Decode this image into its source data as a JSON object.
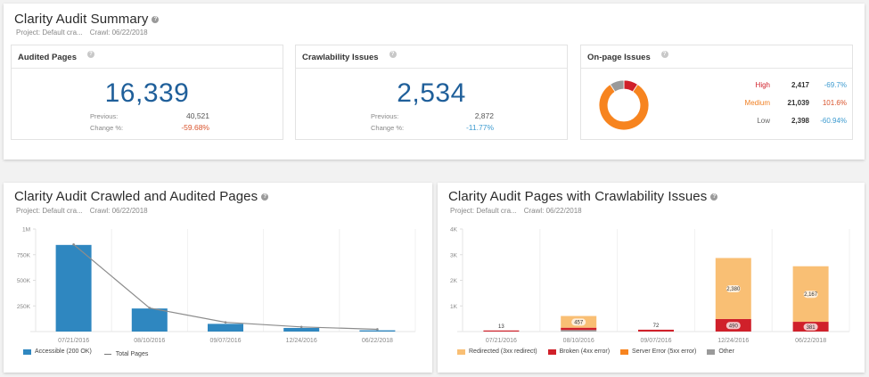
{
  "summary": {
    "title": "Clarity Audit Summary",
    "help_icon": "question-circle-icon",
    "project": "Project: Default cra...",
    "crawl": "Crawl: 06/22/2018",
    "audited_pages": {
      "title": "Audited Pages",
      "value": "16,339",
      "previous_label": "Previous:",
      "previous_value": "40,521",
      "change_label": "Change %:",
      "change_value": "-59.68%",
      "change_color": "#d9532c"
    },
    "crawlability_issues": {
      "title": "Crawlability Issues",
      "value": "2,534",
      "previous_label": "Previous:",
      "previous_value": "2,872",
      "change_label": "Change %:",
      "change_value": "-11.77%",
      "change_color": "#3d9bd0"
    },
    "onpage_issues": {
      "title": "On-page Issues",
      "rows": [
        {
          "label": "High",
          "value": "2,417",
          "change": "-69.7%",
          "label_color": "#d0202a",
          "change_color": "#3d9bd0",
          "count": 2417
        },
        {
          "label": "Medium",
          "value": "21,039",
          "change": "101.6%",
          "label_color": "#f07f22",
          "change_color": "#d9532c",
          "count": 21039
        },
        {
          "label": "Low",
          "value": "2,398",
          "change": "-60.94%",
          "label_color": "#666666",
          "change_color": "#3d9bd0",
          "count": 2398
        }
      ],
      "donut_colors": {
        "High": "#d0202a",
        "Medium": "#f7841f",
        "Low": "#9a9a9a"
      }
    }
  },
  "crawled_chart": {
    "title": "Clarity Audit Crawled and Audited Pages",
    "project": "Project: Default cra...",
    "crawl": "Crawl: 06/22/2018"
  },
  "crawlability_chart": {
    "title": "Clarity Audit Pages with Crawlability Issues",
    "project": "Project: Default cra...",
    "crawl": "Crawl: 06/22/2018"
  },
  "chart_data": [
    {
      "type": "bar",
      "title": "Clarity Audit Crawled and Audited Pages",
      "categories": [
        "07/21/2016",
        "08/10/2016",
        "09/07/2016",
        "12/24/2016",
        "06/22/2018"
      ],
      "series": [
        {
          "name": "Accessible (200 OK)",
          "kind": "bar",
          "color": "#2f87c0",
          "values": [
            845000,
            225000,
            75000,
            35000,
            12000
          ]
        },
        {
          "name": "Total Pages",
          "kind": "line",
          "color": "#8c8c8c",
          "values": [
            850000,
            230000,
            90000,
            45000,
            22000
          ]
        }
      ],
      "yticks": [
        "",
        "250K",
        "500K",
        "750K",
        "1M"
      ],
      "ylim": [
        0,
        1000000
      ],
      "grid": true,
      "legend": "bottom-left"
    },
    {
      "type": "bar",
      "stacked": true,
      "title": "Clarity Audit Pages with Crawlability Issues",
      "categories": [
        "07/21/2016",
        "08/10/2016",
        "09/07/2016",
        "12/24/2016",
        "06/22/2018"
      ],
      "series": [
        {
          "name": "Other",
          "color": "#9a9a9a",
          "values": [
            0,
            60,
            0,
            0,
            0
          ]
        },
        {
          "name": "Broken (4xx error)",
          "color": "#d0202a",
          "values": [
            13,
            90,
            72,
            490,
            381
          ],
          "labels": [
            "13",
            "",
            "72",
            "490",
            "381"
          ]
        },
        {
          "name": "Server Error (5xx error)",
          "color": "#f7841f",
          "values": [
            0,
            0,
            0,
            0,
            0
          ]
        },
        {
          "name": "Redirected (3xx redirect)",
          "color": "#f9bf74",
          "values": [
            0,
            457,
            0,
            2380,
            2167
          ],
          "labels": [
            "",
            "457",
            "",
            "2,380",
            "2,167"
          ]
        }
      ],
      "legend_order": [
        "Redirected (3xx redirect)",
        "Broken (4xx error)",
        "Server Error (5xx error)",
        "Other"
      ],
      "yticks": [
        "",
        "1K",
        "2K",
        "3K",
        "4K"
      ],
      "ylim": [
        0,
        4000
      ],
      "grid": true,
      "legend": "bottom-left"
    }
  ]
}
